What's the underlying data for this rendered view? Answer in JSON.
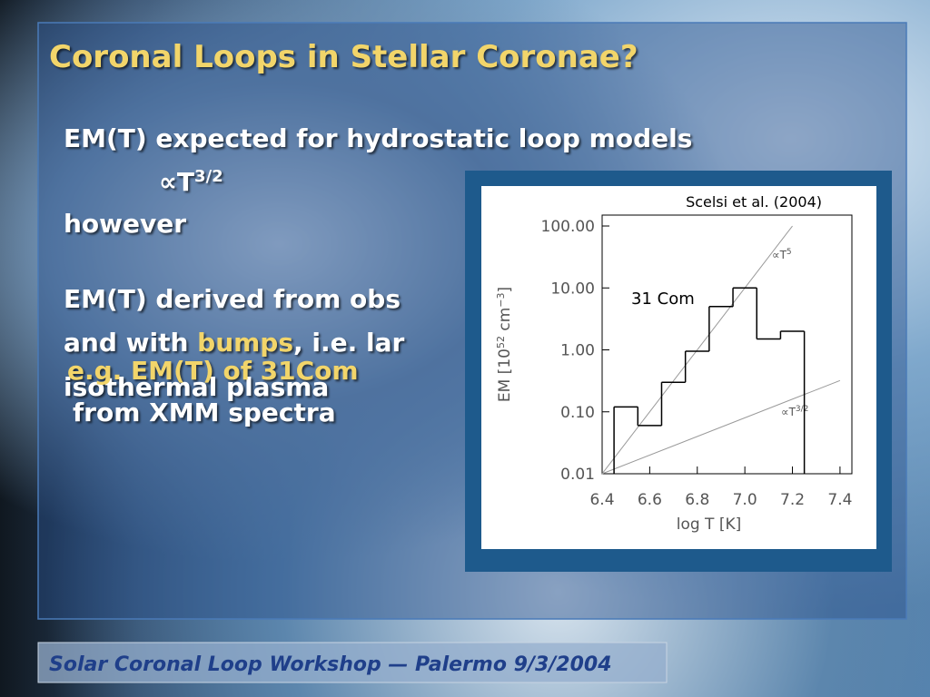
{
  "title": "Coronal Loops in Stellar Coronae?",
  "body": {
    "line1": "EM(T) expected for hydrostatic loop models",
    "prop": "∝T",
    "prop_exp": "3/2",
    "however": "however",
    "derived": "EM(T) derived from obs",
    "and_with": "and with ",
    "bumps": "bumps",
    "ie": ", i.e. lar",
    "iso": "isothermal plasma",
    "eg": "e.g. EM(T) of 31Com",
    "xmm": "from XMM spectra"
  },
  "footer": "Solar Coronal Loop Workshop — Palermo 9/3/2004",
  "chart_data": {
    "type": "histogram",
    "annotations": [
      "Scelsi et al. (2004)",
      "31 Com"
    ],
    "xlabel": "log T [K]",
    "ylabel": [
      "EM [10",
      "52",
      " cm",
      "−3",
      "]"
    ],
    "bins": [
      6.45,
      6.55,
      6.65,
      6.75,
      6.85,
      6.95,
      7.05,
      7.15,
      7.25
    ],
    "counts": [
      0.12,
      0.06,
      0.3,
      0.95,
      5,
      10,
      1.5,
      2
    ],
    "color": "#000000",
    "log_y": true,
    "xlim": [
      6.4,
      7.45
    ],
    "ylim": [
      0.01,
      150
    ],
    "xticks": [
      6.4,
      6.6,
      6.8,
      {
        "value": 7,
        "label": "7.0"
      },
      7.2,
      7.4
    ],
    "yticks": [
      {
        "value": 100,
        "label": "100.00"
      },
      {
        "value": 10,
        "label": "10.00"
      },
      {
        "value": 1,
        "label": "1.00"
      },
      {
        "value": 0.1,
        "label": "0.10"
      },
      {
        "value": 0.01,
        "label": "0.01"
      }
    ],
    "lines": [
      {
        "label": "∝T",
        "label_sup": "5",
        "x": [
          6.4,
          7.2
        ],
        "values": [
          0.01,
          100
        ],
        "color": "#999999"
      },
      {
        "label": "∝T",
        "label_sup": "3/2",
        "x": [
          6.4,
          7.4
        ],
        "values": [
          0.01,
          0.32
        ],
        "color": "#999999"
      }
    ]
  }
}
